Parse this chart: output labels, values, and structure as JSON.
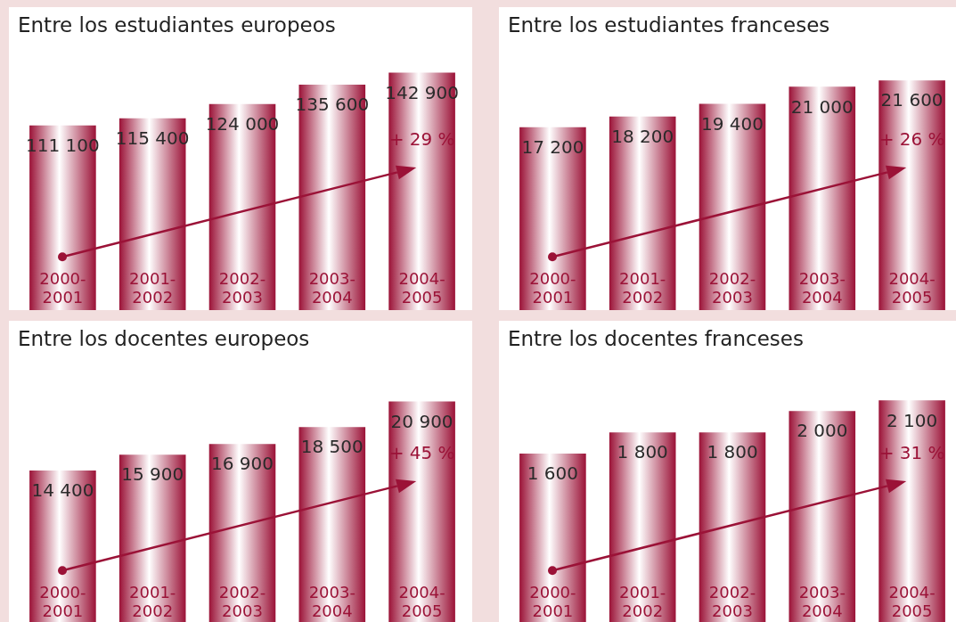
{
  "chart_data": [
    {
      "type": "bar",
      "title": "Entre los estudiantes europeos",
      "categories": [
        "2000-2001",
        "2001-2002",
        "2002-2003",
        "2003-2004",
        "2004-2005"
      ],
      "values": [
        111100,
        115400,
        124000,
        135600,
        142900
      ],
      "value_labels": [
        "111 100",
        "115 400",
        "124 000",
        "135 600",
        "142 900"
      ],
      "color": "#9b1237",
      "annotations": [
        "+ 29 %"
      ],
      "legend": false
    },
    {
      "type": "bar",
      "title": "Entre los estudiantes franceses",
      "categories": [
        "2000-2001",
        "2001-2002",
        "2002-2003",
        "2003-2004",
        "2004-2005"
      ],
      "values": [
        17200,
        18200,
        19400,
        21000,
        21600
      ],
      "value_labels": [
        "17 200",
        "18 200",
        "19 400",
        "21 000",
        "21 600"
      ],
      "color": "#9b1237",
      "annotations": [
        "+ 26 %"
      ],
      "legend": false
    },
    {
      "type": "bar",
      "title": "Entre los docentes europeos",
      "categories": [
        "2000-2001",
        "2001-2002",
        "2002-2003",
        "2003-2004",
        "2004-2005"
      ],
      "values": [
        14400,
        15900,
        16900,
        18500,
        20900
      ],
      "value_labels": [
        "14 400",
        "15 900",
        "16 900",
        "18 500",
        "20 900"
      ],
      "color": "#9b1237",
      "annotations": [
        "+ 45 %"
      ],
      "legend": false
    },
    {
      "type": "bar",
      "title": "Entre los docentes franceses",
      "categories": [
        "2000-2001",
        "2001-2002",
        "2002-2003",
        "2003-2004",
        "2004-2005"
      ],
      "values": [
        1600,
        1800,
        1800,
        2000,
        2100
      ],
      "value_labels": [
        "1 600",
        "1 800",
        "1 800",
        "2 000",
        "2 100"
      ],
      "color": "#9b1237",
      "annotations": [
        "+ 31 %"
      ],
      "legend": false
    }
  ]
}
